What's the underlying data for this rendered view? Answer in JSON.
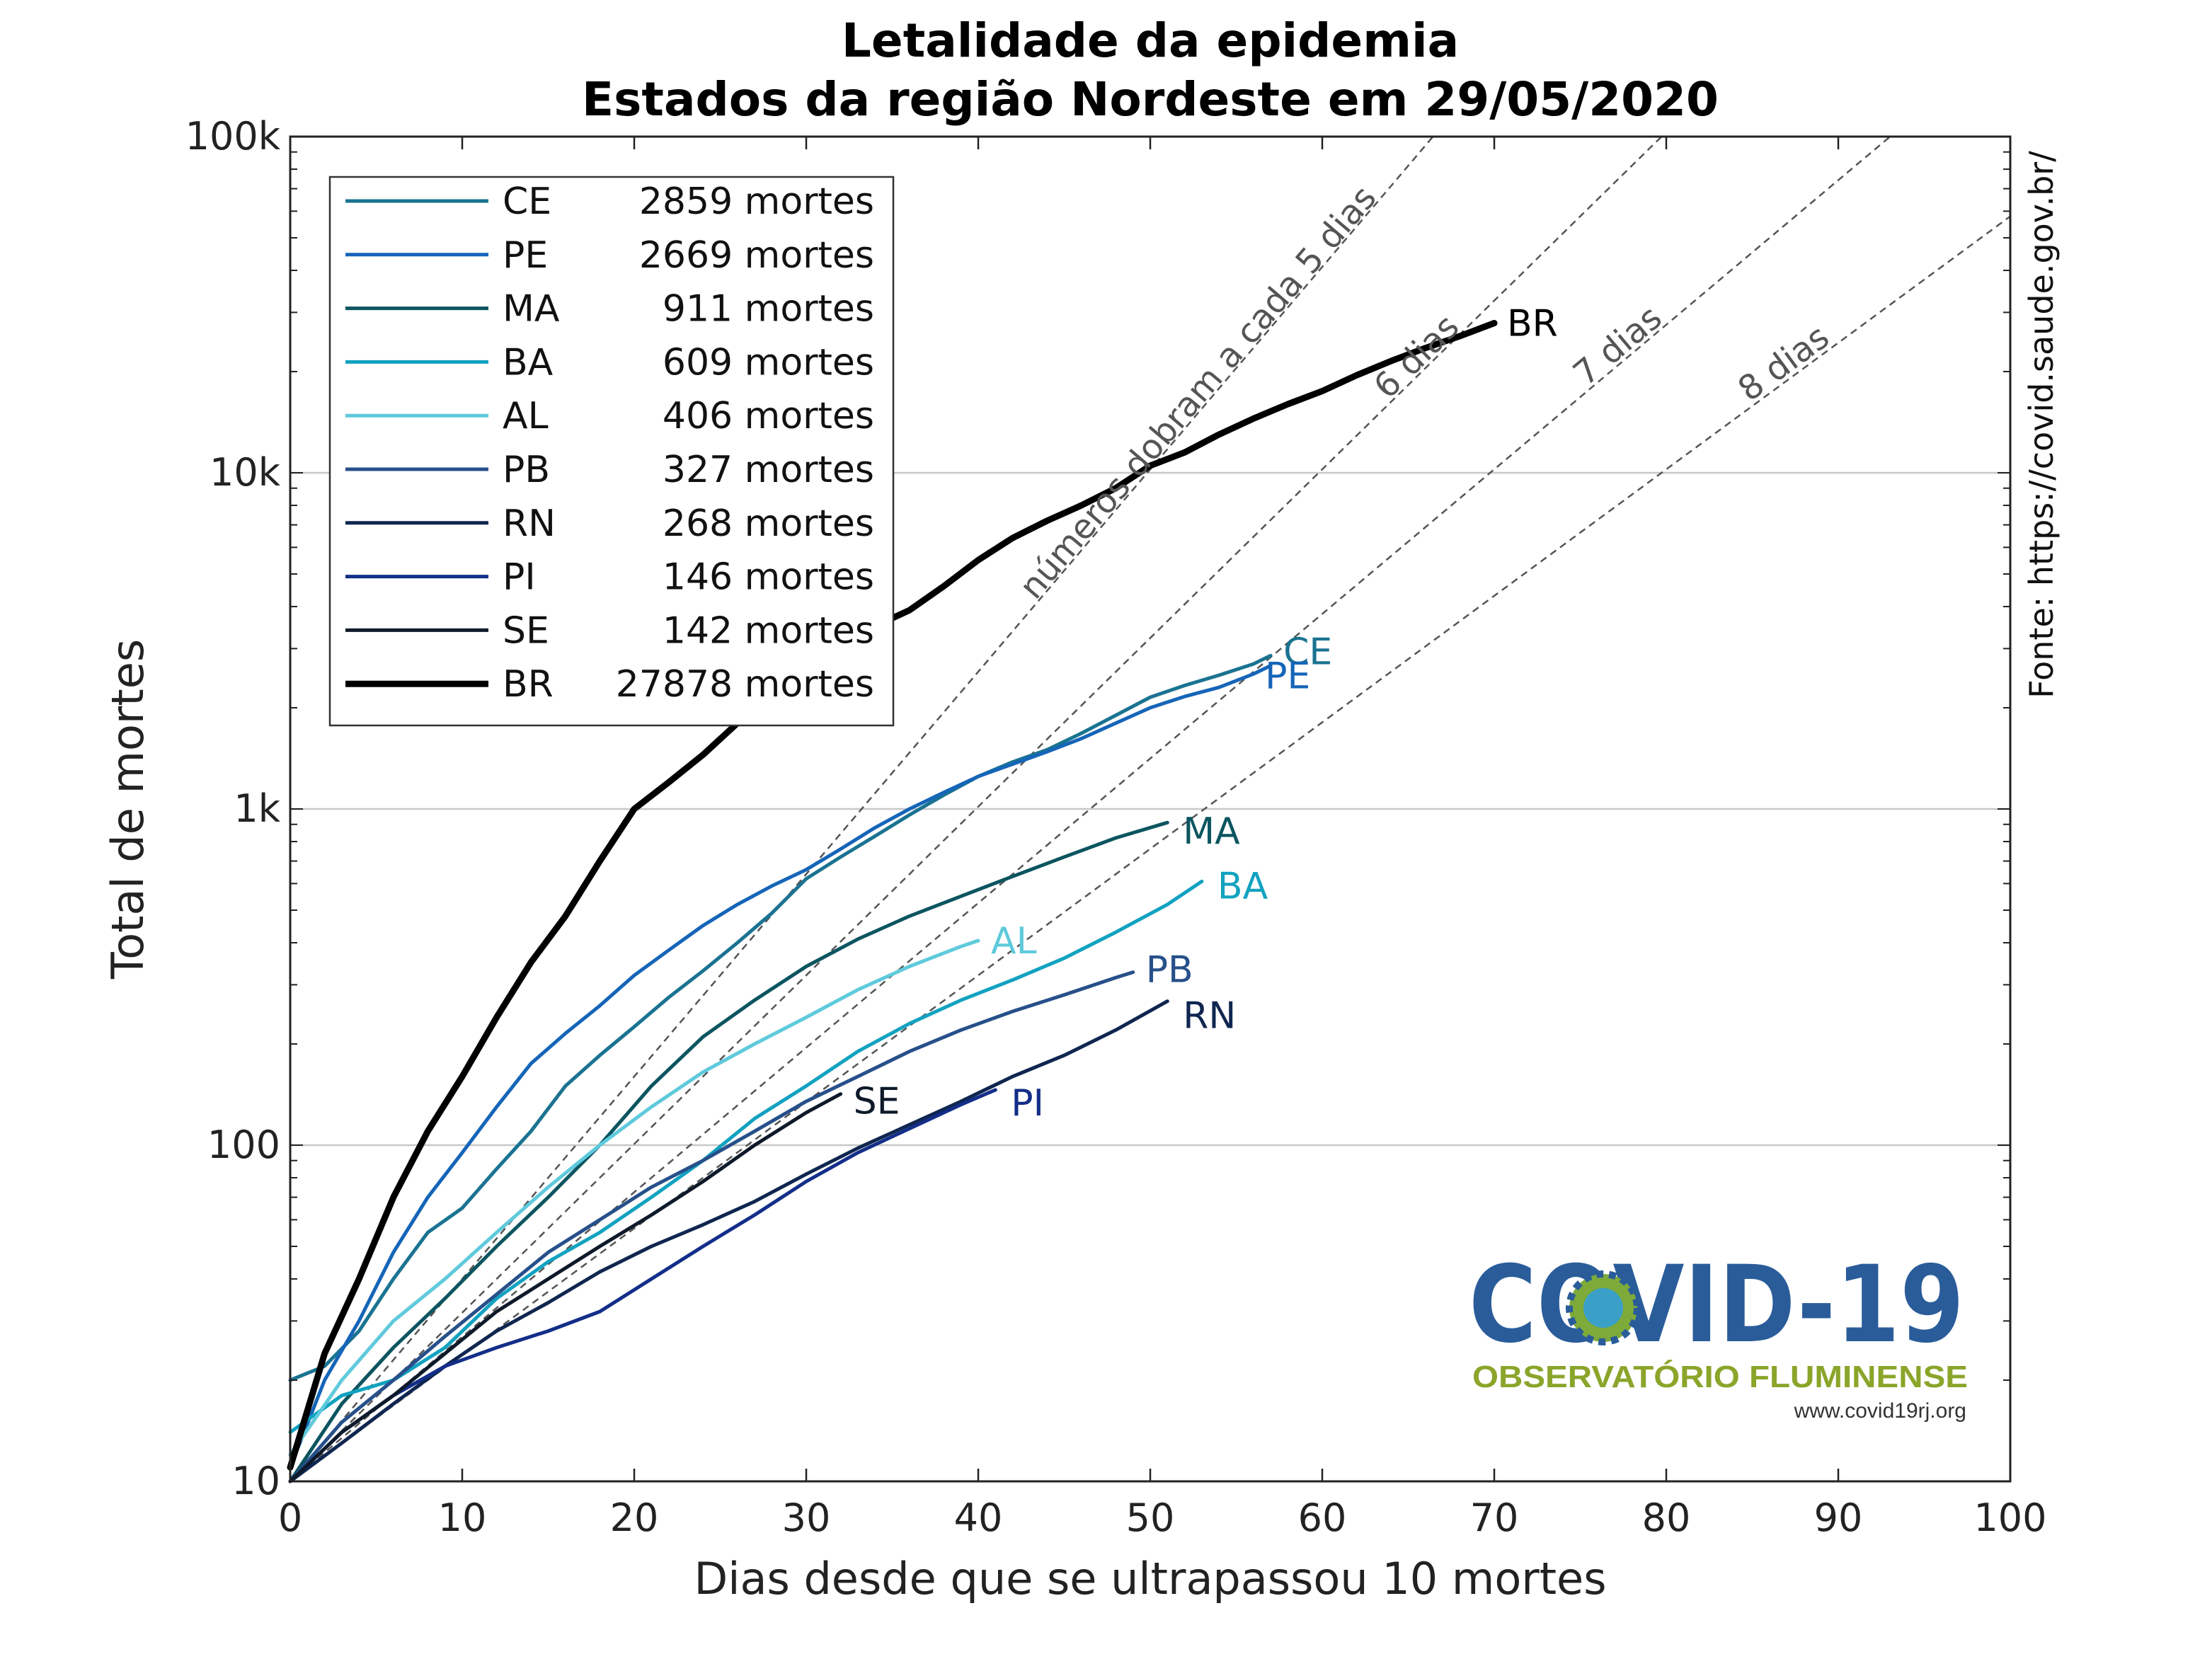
{
  "chart_data": {
    "type": "line",
    "title": [
      "Letalidade da epidemia",
      "Estados da região Nordeste em 29/05/2020"
    ],
    "xlabel": "Dias desde que se ultrapassou 10 mortes",
    "ylabel": "Total de mortes",
    "xlim": [
      0,
      100
    ],
    "ylim": [
      10,
      100000
    ],
    "yscale": "log",
    "grid": "horizontal",
    "x_ticks": [
      "0",
      "10",
      "20",
      "30",
      "40",
      "50",
      "60",
      "70",
      "80",
      "90",
      "100"
    ],
    "y_ticks": [
      {
        "value": 10,
        "label": "10"
      },
      {
        "value": 100,
        "label": "100"
      },
      {
        "value": 1000,
        "label": "1k"
      },
      {
        "value": 10000,
        "label": "10k"
      },
      {
        "value": 100000,
        "label": "100k"
      }
    ],
    "legend_position": "top-left",
    "reference_lines": [
      {
        "doubling_days": 5,
        "label": "números dobram a cada 5 dias"
      },
      {
        "doubling_days": 6,
        "label": "6 dias"
      },
      {
        "doubling_days": 7,
        "label": "7 dias"
      },
      {
        "doubling_days": 8,
        "label": "8 dias"
      }
    ],
    "series": [
      {
        "name": "CE",
        "legend": "2859 mortes",
        "color": "#1a7391",
        "width": 5,
        "x": [
          0,
          2,
          4,
          6,
          8,
          10,
          12,
          14,
          16,
          18,
          20,
          22,
          24,
          26,
          28,
          30,
          32,
          34,
          36,
          38,
          40,
          42,
          44,
          46,
          48,
          50,
          52,
          54,
          56,
          57
        ],
        "y": [
          20,
          22,
          28,
          40,
          55,
          65,
          85,
          110,
          150,
          185,
          225,
          275,
          330,
          400,
          490,
          620,
          720,
          830,
          960,
          1100,
          1250,
          1380,
          1500,
          1680,
          1900,
          2150,
          2330,
          2500,
          2700,
          2859
        ]
      },
      {
        "name": "PE",
        "legend": "2669 mortes",
        "color": "#1565b8",
        "width": 5,
        "x": [
          0,
          2,
          4,
          6,
          8,
          10,
          12,
          14,
          16,
          18,
          20,
          22,
          24,
          26,
          28,
          30,
          32,
          34,
          36,
          38,
          40,
          42,
          44,
          46,
          48,
          50,
          52,
          54,
          56,
          57
        ],
        "y": [
          11,
          20,
          30,
          48,
          70,
          95,
          130,
          175,
          215,
          260,
          320,
          380,
          450,
          520,
          590,
          660,
          760,
          880,
          1000,
          1120,
          1250,
          1360,
          1480,
          1620,
          1800,
          2000,
          2160,
          2300,
          2520,
          2669
        ]
      },
      {
        "name": "MA",
        "legend": "911 mortes",
        "color": "#0c5560",
        "width": 5,
        "x": [
          0,
          3,
          6,
          9,
          12,
          15,
          18,
          21,
          24,
          27,
          30,
          33,
          36,
          39,
          42,
          45,
          48,
          51
        ],
        "y": [
          10,
          17,
          25,
          35,
          50,
          70,
          100,
          150,
          210,
          270,
          340,
          410,
          480,
          550,
          630,
          720,
          820,
          911
        ]
      },
      {
        "name": "BA",
        "legend": "609 mortes",
        "color": "#12a2c0",
        "width": 5,
        "x": [
          0,
          3,
          6,
          9,
          12,
          15,
          18,
          21,
          24,
          27,
          30,
          33,
          36,
          39,
          42,
          45,
          48,
          51,
          53
        ],
        "y": [
          14,
          18,
          20,
          25,
          35,
          45,
          55,
          70,
          90,
          120,
          150,
          190,
          230,
          270,
          310,
          360,
          430,
          520,
          609
        ]
      },
      {
        "name": "AL",
        "legend": "406 mortes",
        "color": "#5fcadc",
        "width": 5,
        "x": [
          0,
          3,
          6,
          9,
          12,
          15,
          18,
          21,
          24,
          27,
          30,
          33,
          36,
          39,
          40
        ],
        "y": [
          12,
          20,
          30,
          40,
          55,
          75,
          100,
          130,
          165,
          200,
          240,
          290,
          340,
          390,
          406
        ]
      },
      {
        "name": "PB",
        "legend": "327 mortes",
        "color": "#27508a",
        "width": 5,
        "x": [
          0,
          3,
          6,
          9,
          12,
          15,
          18,
          21,
          24,
          27,
          30,
          33,
          36,
          39,
          42,
          45,
          48,
          49
        ],
        "y": [
          10,
          15,
          20,
          27,
          36,
          48,
          60,
          75,
          90,
          110,
          135,
          160,
          190,
          220,
          250,
          280,
          315,
          327
        ]
      },
      {
        "name": "RN",
        "legend": "268 mortes",
        "color": "#0f2650",
        "width": 5,
        "x": [
          0,
          3,
          6,
          9,
          12,
          15,
          18,
          21,
          24,
          27,
          30,
          33,
          36,
          39,
          42,
          45,
          48,
          51
        ],
        "y": [
          10,
          13,
          17,
          22,
          28,
          34,
          42,
          50,
          58,
          68,
          82,
          98,
          115,
          135,
          160,
          185,
          220,
          268
        ]
      },
      {
        "name": "PI",
        "legend": "146 mortes",
        "color": "#132e88",
        "width": 5,
        "x": [
          0,
          3,
          6,
          9,
          12,
          15,
          18,
          21,
          24,
          27,
          30,
          33,
          36,
          39,
          41
        ],
        "y": [
          10,
          14,
          18,
          22,
          25,
          28,
          32,
          40,
          50,
          62,
          78,
          95,
          112,
          132,
          146
        ]
      },
      {
        "name": "SE",
        "legend": "142 mortes",
        "color": "#0e1a2a",
        "width": 5,
        "x": [
          0,
          3,
          6,
          9,
          12,
          15,
          18,
          21,
          24,
          27,
          30,
          32
        ],
        "y": [
          10,
          14,
          18,
          24,
          32,
          40,
          50,
          62,
          78,
          100,
          125,
          142
        ]
      },
      {
        "name": "BR",
        "legend": "27878 mortes",
        "color": "#000000",
        "width": 9,
        "x": [
          0,
          2,
          4,
          6,
          8,
          10,
          12,
          14,
          16,
          18,
          20,
          22,
          24,
          26,
          28,
          30,
          32,
          34,
          36,
          38,
          40,
          42,
          44,
          46,
          48,
          50,
          52,
          54,
          56,
          58,
          60,
          62,
          64,
          66,
          68,
          70
        ],
        "y": [
          11,
          24,
          40,
          70,
          110,
          160,
          240,
          350,
          480,
          700,
          1000,
          1200,
          1450,
          1800,
          2200,
          2700,
          3100,
          3500,
          3900,
          4600,
          5500,
          6400,
          7200,
          8000,
          9000,
          10500,
          11500,
          13000,
          14500,
          16000,
          17500,
          19500,
          21500,
          23500,
          25500,
          27878
        ]
      }
    ]
  },
  "source_text": "Fonte: https://covid.saude.gov.br/",
  "logo": {
    "title": "COVID-19",
    "subtitle": "OBSERVATÓRIO FLUMINENSE",
    "url": "www.covid19rj.org"
  }
}
